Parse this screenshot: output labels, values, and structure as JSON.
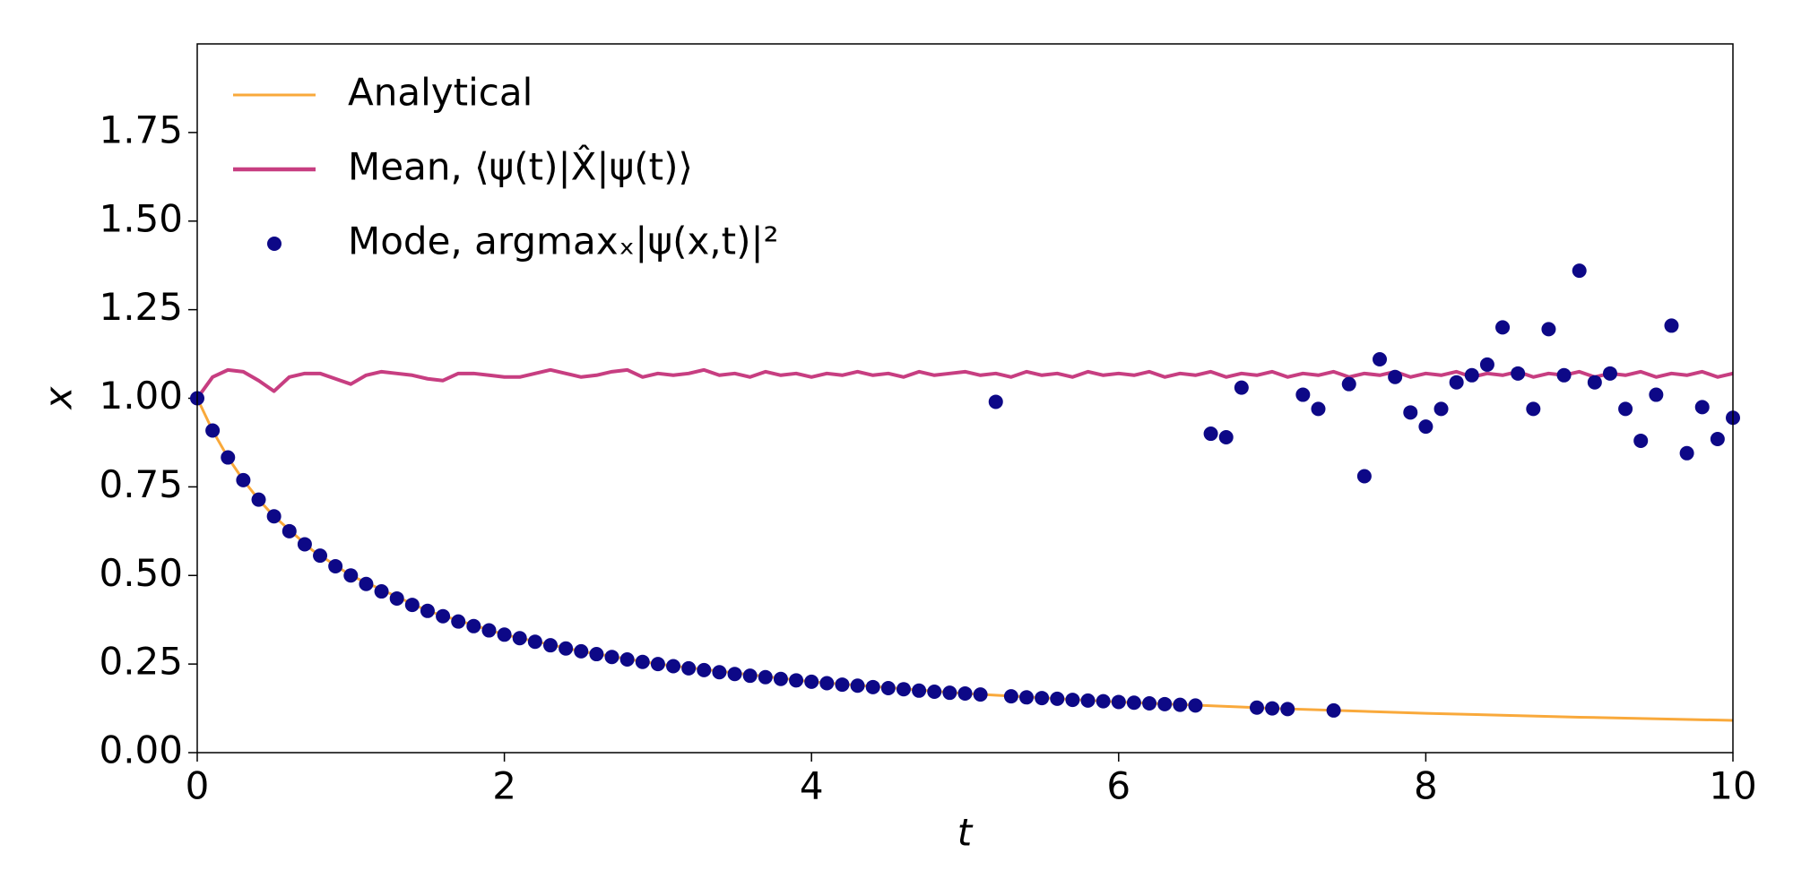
{
  "chart_data": {
    "type": "line",
    "xlabel": "t",
    "ylabel": "x",
    "xlim": [
      0,
      10
    ],
    "ylim": [
      0,
      2.0
    ],
    "xticks": [
      0,
      2,
      4,
      6,
      8,
      10
    ],
    "yticks": [
      {
        "value": 0,
        "label": "0.00"
      },
      0.25,
      {
        "value": 0.5,
        "label": "0.50"
      },
      0.75,
      {
        "value": 1,
        "label": "1.00"
      },
      1.25,
      {
        "value": 1.5,
        "label": "1.50"
      },
      1.75
    ],
    "legend": "upper left",
    "series": [
      {
        "name": "Analytical",
        "type": "line",
        "color": "#f9a93b",
        "x": [
          0,
          0.1,
          0.2,
          0.3,
          0.4,
          0.5,
          0.75,
          1,
          1.5,
          2,
          2.5,
          3,
          4,
          5,
          6,
          7,
          8,
          9,
          10
        ],
        "values": [
          1.0,
          0.909,
          0.833,
          0.769,
          0.714,
          0.667,
          0.571,
          0.5,
          0.4,
          0.333,
          0.286,
          0.25,
          0.2,
          0.167,
          0.143,
          0.125,
          0.111,
          0.1,
          0.091
        ]
      },
      {
        "name": "Mean, ⟨ψ(t)|X̂|ψ(t)⟩",
        "type": "line",
        "color": "#c73e81",
        "x": [
          0,
          0.1,
          0.2,
          0.3,
          0.4,
          0.5,
          0.6,
          0.7,
          0.8,
          0.9,
          1,
          1.1,
          1.2,
          1.3,
          1.4,
          1.5,
          1.6,
          1.7,
          1.8,
          1.9,
          2,
          2.1,
          2.2,
          2.3,
          2.4,
          2.5,
          2.6,
          2.7,
          2.8,
          2.9,
          3,
          3.1,
          3.2,
          3.3,
          3.4,
          3.5,
          3.6,
          3.7,
          3.8,
          3.9,
          4,
          4.1,
          4.2,
          4.3,
          4.4,
          4.5,
          4.6,
          4.7,
          4.8,
          4.9,
          5,
          5.1,
          5.2,
          5.3,
          5.4,
          5.5,
          5.6,
          5.7,
          5.8,
          5.9,
          6,
          6.1,
          6.2,
          6.3,
          6.4,
          6.5,
          6.6,
          6.7,
          6.8,
          6.9,
          7,
          7.1,
          7.2,
          7.3,
          7.4,
          7.5,
          7.6,
          7.7,
          7.8,
          7.9,
          8,
          8.1,
          8.2,
          8.3,
          8.4,
          8.5,
          8.6,
          8.7,
          8.8,
          8.9,
          9,
          9.1,
          9.2,
          9.3,
          9.4,
          9.5,
          9.6,
          9.7,
          9.8,
          9.9,
          10
        ],
        "values": [
          1.0,
          1.06,
          1.08,
          1.075,
          1.05,
          1.02,
          1.06,
          1.07,
          1.07,
          1.055,
          1.04,
          1.065,
          1.075,
          1.07,
          1.065,
          1.055,
          1.05,
          1.07,
          1.07,
          1.065,
          1.06,
          1.06,
          1.07,
          1.08,
          1.07,
          1.06,
          1.065,
          1.075,
          1.08,
          1.06,
          1.07,
          1.065,
          1.07,
          1.08,
          1.065,
          1.07,
          1.06,
          1.075,
          1.065,
          1.07,
          1.06,
          1.07,
          1.065,
          1.075,
          1.065,
          1.07,
          1.06,
          1.075,
          1.065,
          1.07,
          1.075,
          1.065,
          1.07,
          1.06,
          1.075,
          1.065,
          1.07,
          1.06,
          1.075,
          1.065,
          1.07,
          1.065,
          1.075,
          1.06,
          1.07,
          1.065,
          1.075,
          1.06,
          1.07,
          1.065,
          1.075,
          1.06,
          1.07,
          1.065,
          1.075,
          1.06,
          1.07,
          1.065,
          1.075,
          1.06,
          1.07,
          1.065,
          1.075,
          1.06,
          1.07,
          1.065,
          1.075,
          1.06,
          1.07,
          1.065,
          1.075,
          1.06,
          1.07,
          1.065,
          1.075,
          1.06,
          1.07,
          1.065,
          1.075,
          1.06,
          1.07
        ]
      },
      {
        "name": "Mode, argmaxₓ|ψ(x,t)|²",
        "type": "scatter",
        "color": "#0d0887",
        "x": [
          0,
          0.1,
          0.2,
          0.3,
          0.4,
          0.5,
          0.6,
          0.7,
          0.8,
          0.9,
          1,
          1.1,
          1.2,
          1.3,
          1.4,
          1.5,
          1.6,
          1.7,
          1.8,
          1.9,
          2,
          2.1,
          2.2,
          2.3,
          2.4,
          2.5,
          2.6,
          2.7,
          2.8,
          2.9,
          3,
          3.1,
          3.2,
          3.3,
          3.4,
          3.5,
          3.6,
          3.7,
          3.8,
          3.9,
          4,
          4.1,
          4.2,
          4.3,
          4.4,
          4.5,
          4.6,
          4.7,
          4.8,
          4.9,
          5,
          5.1,
          5.2,
          5.3,
          5.4,
          5.5,
          5.6,
          5.7,
          5.8,
          5.9,
          6,
          6.1,
          6.2,
          6.3,
          6.4,
          6.5,
          6.6,
          6.7,
          6.8,
          6.9,
          7,
          7.1,
          7.2,
          7.3,
          7.4,
          7.5,
          7.6,
          7.7,
          7.8,
          7.9,
          8,
          8.1,
          8.2,
          8.3,
          8.4,
          8.5,
          8.6,
          8.7,
          8.8,
          8.9,
          9,
          9.1,
          9.2,
          9.3,
          9.4,
          9.5,
          9.6,
          9.7,
          9.8,
          9.9,
          10
        ],
        "values": [
          1.0,
          0.909,
          0.833,
          0.769,
          0.714,
          0.667,
          0.625,
          0.588,
          0.556,
          0.526,
          0.5,
          0.476,
          0.455,
          0.435,
          0.417,
          0.4,
          0.385,
          0.37,
          0.357,
          0.345,
          0.333,
          0.323,
          0.313,
          0.303,
          0.294,
          0.286,
          0.278,
          0.27,
          0.263,
          0.256,
          0.25,
          0.244,
          0.238,
          0.233,
          0.227,
          0.222,
          0.217,
          0.213,
          0.208,
          0.204,
          0.2,
          0.196,
          0.192,
          0.189,
          0.185,
          0.182,
          0.179,
          0.175,
          0.172,
          0.169,
          0.167,
          0.164,
          0.99,
          0.159,
          0.156,
          0.154,
          0.152,
          0.149,
          0.147,
          0.145,
          0.143,
          0.141,
          0.139,
          0.137,
          0.135,
          0.133,
          0.9,
          0.89,
          1.03,
          0.127,
          0.125,
          0.123,
          1.01,
          0.97,
          0.119,
          1.04,
          0.78,
          1.11,
          1.06,
          0.96,
          0.92,
          0.97,
          1.045,
          1.065,
          1.095,
          1.2,
          1.07,
          0.97,
          1.195,
          1.065,
          1.36,
          1.045,
          1.07,
          0.97,
          0.88,
          1.01,
          1.205,
          0.845,
          0.975,
          0.885,
          0.945
        ]
      }
    ]
  }
}
